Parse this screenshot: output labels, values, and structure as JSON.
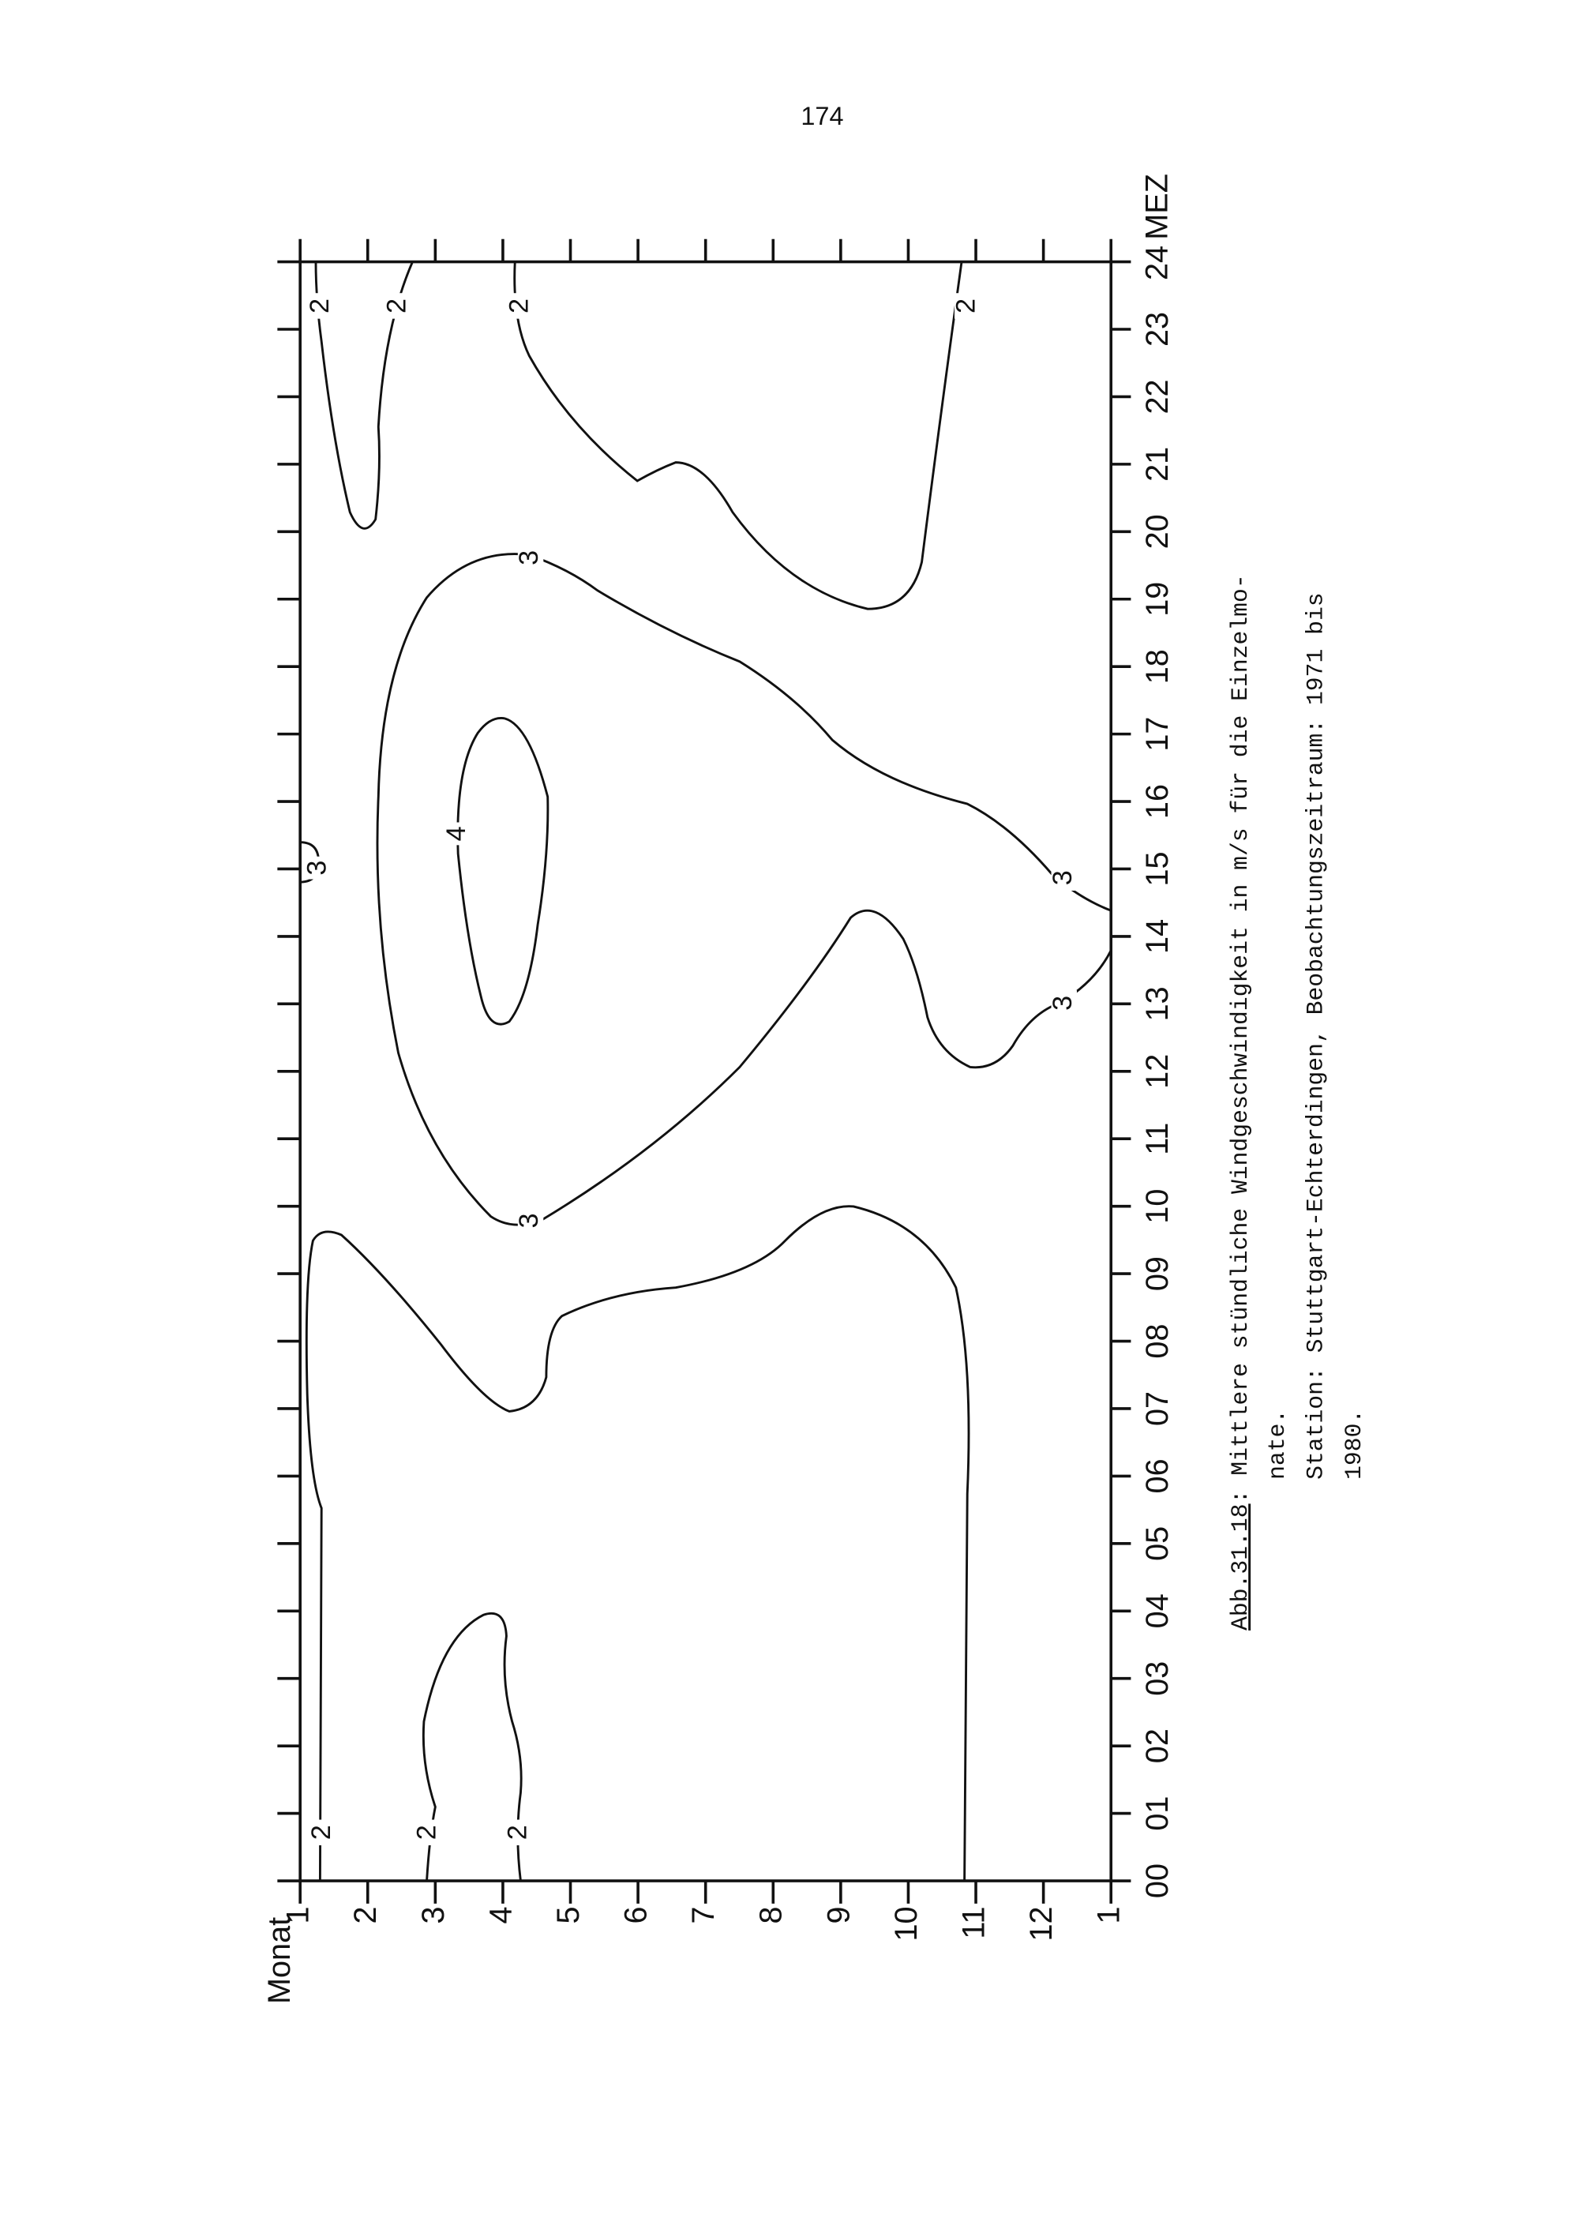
{
  "page_number": "174",
  "figure": {
    "y_axis_label": "Monat",
    "month_ticks": [
      "1",
      "2",
      "3",
      "4",
      "5",
      "6",
      "7",
      "8",
      "9",
      "10",
      "11",
      "12",
      "1"
    ],
    "hour_ticks": [
      "00",
      "01",
      "02",
      "03",
      "04",
      "05",
      "06",
      "07",
      "08",
      "09",
      "10",
      "11",
      "12",
      "13",
      "14",
      "15",
      "16",
      "17",
      "18",
      "19",
      "20",
      "21",
      "22",
      "23",
      "24"
    ],
    "hour_unit": "MEZ",
    "contour_labels": [
      "2",
      "2",
      "2",
      "2",
      "2",
      "2",
      "2",
      "3",
      "3",
      "3",
      "3",
      "3",
      "4"
    ]
  },
  "caption": {
    "figure_number": "Abb.31.18",
    "lines": [
      ": Mittlere stündliche Windgeschwindigkeit in m/s für die Einzelmo-",
      "nate.",
      "Station:  Stuttgart-Echterdingen, Beobachtungszeitraum: 1971 bis",
      "1980."
    ]
  }
}
